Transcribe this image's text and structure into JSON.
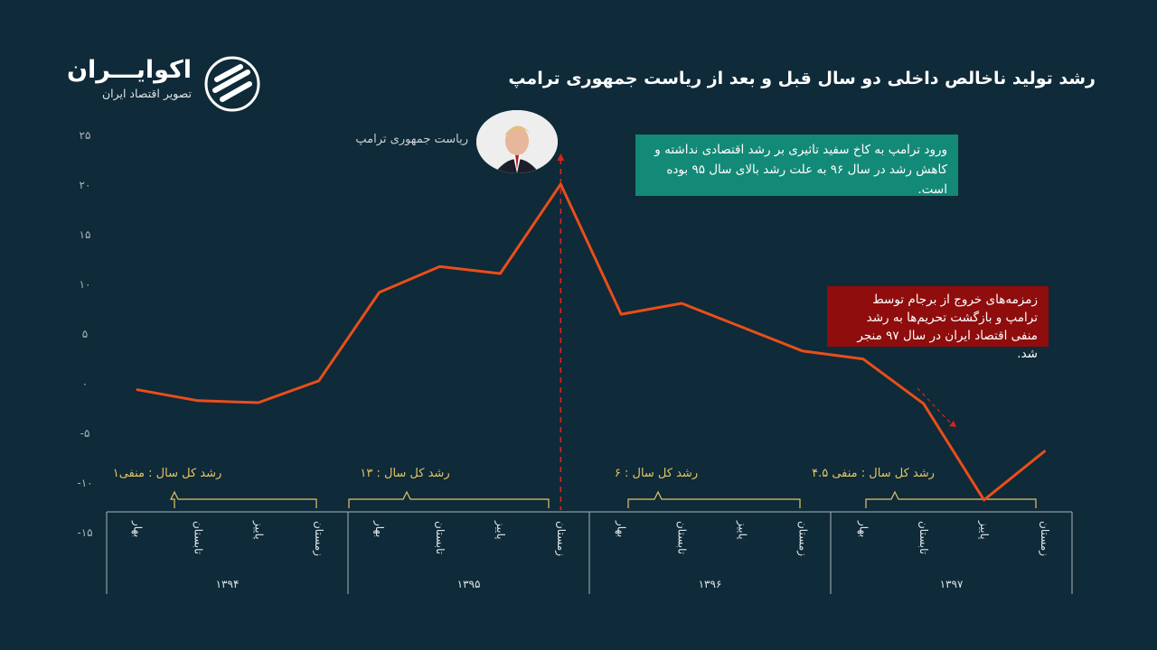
{
  "header": {
    "title": "رشد تولید ناخالص داخلی دو سال قبل و بعد از ریاست جمهوری ترامپ"
  },
  "logo": {
    "name": "اکوایـــران",
    "tagline": "تصویر اقتصاد ایران"
  },
  "annotations": {
    "photo_label": "ریاست جمهوری ترامپ",
    "green_note": "ورود ترامپ به کاخ سفید تاثیری بر رشد اقتصادی نداشته و کاهش رشد در سال ۹۶ به علت رشد بالای سال ۹۵ بوده است.",
    "red_note": "زمزمه‌های خروج از برجام توسط ترامپ و بازگشت تحریم‌ها به رشد منفی اقتصاد ایران در سال ۹۷ منجر شد.",
    "year_totals": [
      "رشد کل سال : منفی۱",
      "رشد کل سال : ۱۳",
      "رشد کل سال : ۶",
      "رشد کل سال : منفی ۴.۵"
    ]
  },
  "chart_data": {
    "type": "line",
    "years": [
      "۱۳۹۴",
      "۱۳۹۵",
      "۱۳۹۶",
      "۱۳۹۷"
    ],
    "categories": [
      "بهار",
      "تابستان",
      "پاییز",
      "زمستان",
      "بهار",
      "تابستان",
      "پاییز",
      "زمستان",
      "بهار",
      "تابستان",
      "پاییز",
      "زمستان",
      "بهار",
      "تابستان",
      "پاییز",
      "زمستان"
    ],
    "values": [
      -0.7,
      -1.8,
      -2.0,
      0.2,
      9.1,
      11.7,
      11.0,
      20.0,
      6.9,
      8.0,
      5.6,
      3.2,
      2.4,
      -2.1,
      -11.8,
      -6.9
    ],
    "ylim": [
      -15,
      25
    ],
    "yticks": [
      "-۱۵",
      "-۱۰",
      "-۵",
      "۰",
      "۵",
      "۱۰",
      "۱۵",
      "۲۰",
      "۲۵"
    ],
    "ytick_values": [
      -15,
      -10,
      -5,
      0,
      5,
      10,
      15,
      20,
      25
    ],
    "marker_index": 7,
    "colors": {
      "line": "#e94e1b",
      "marker_line": "#d9231d",
      "bracket": "#e3c567",
      "axis": "#aab5bb",
      "green_note": "#138977",
      "red_note": "#8f0d0d",
      "background": "#0f2a38"
    }
  }
}
